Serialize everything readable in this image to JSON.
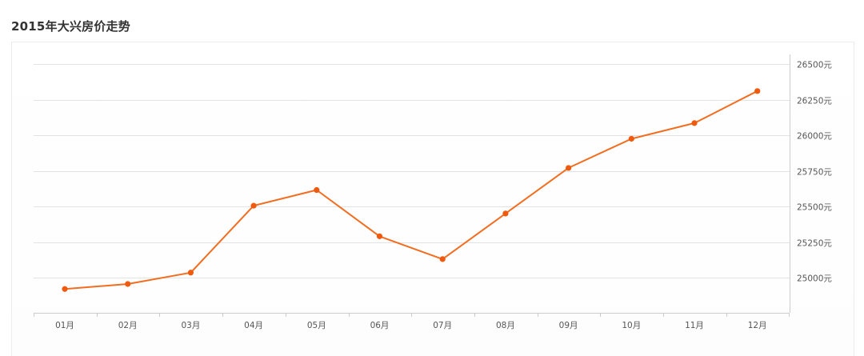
{
  "page": {
    "title": "2015年大兴房价走势"
  },
  "colors": {
    "line": "#f26d1f",
    "point": "#f05a0e",
    "grid": "#e3e3e3",
    "axis": "#cccccc",
    "text": "#555555"
  },
  "chart_data": {
    "type": "line",
    "title": "2015年大兴房价走势",
    "categories": [
      "01月",
      "02月",
      "03月",
      "04月",
      "05月",
      "06月",
      "07月",
      "08月",
      "09月",
      "10月",
      "11月",
      "12月"
    ],
    "series": [
      {
        "values": [
          24920,
          24955,
          25035,
          25505,
          25615,
          25290,
          25130,
          25450,
          25770,
          25975,
          26085,
          26310
        ]
      }
    ],
    "y_ticks": [
      25000,
      25250,
      25500,
      25750,
      26000,
      26250,
      26500
    ],
    "y_tick_labels": [
      "25000元",
      "25250元",
      "25500元",
      "25750元",
      "26000元",
      "26250元",
      "26500元"
    ],
    "y_axis_position": "right",
    "grid": true,
    "legend": "none"
  }
}
